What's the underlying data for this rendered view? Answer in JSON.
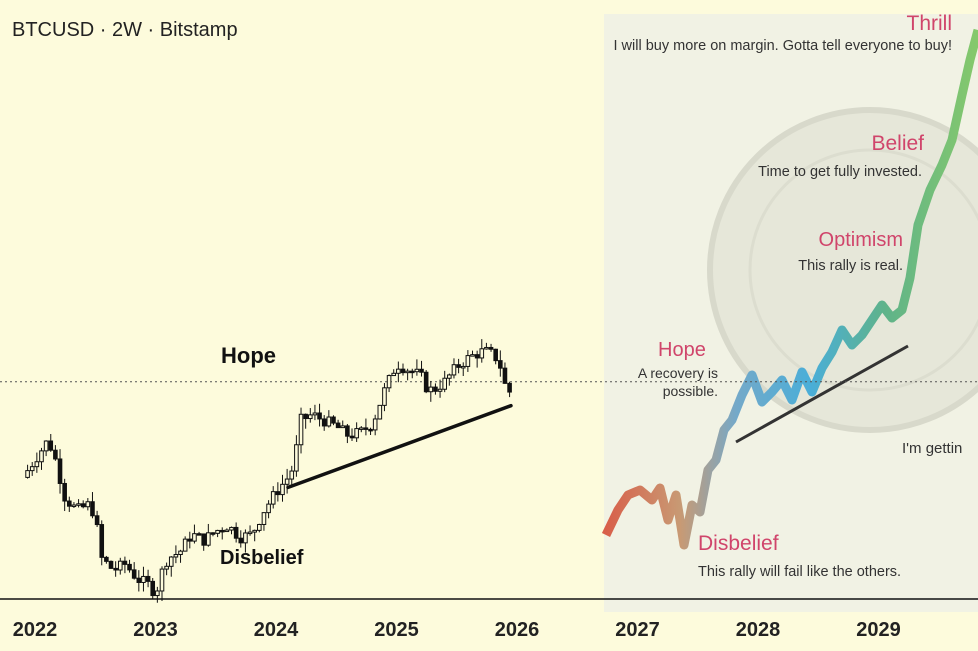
{
  "header": {
    "title": "BTCUSD · 2W · Bitstamp"
  },
  "chart_data": {
    "type": "candlestick",
    "title": "BTCUSD · 2W · Bitstamp",
    "symbol": "BTCUSD",
    "interval": "2W",
    "exchange": "Bitstamp",
    "x_ticks": [
      "2022",
      "2023",
      "2024",
      "2025",
      "2026",
      "2027",
      "2028",
      "2029"
    ],
    "annotations": [
      {
        "label": "Hope",
        "phase": "hope"
      },
      {
        "label": "Disbelief",
        "phase": "disbelief"
      }
    ],
    "trendline": {
      "from_year": 2024.1,
      "to_year": 2025.95
    },
    "price_path": [
      [
        2021.9,
        0.4
      ],
      [
        2022.0,
        0.46
      ],
      [
        2022.1,
        0.52
      ],
      [
        2022.15,
        0.49
      ],
      [
        2022.25,
        0.33
      ],
      [
        2022.35,
        0.29
      ],
      [
        2022.45,
        0.31
      ],
      [
        2022.5,
        0.27
      ],
      [
        2022.55,
        0.13
      ],
      [
        2022.65,
        0.09
      ],
      [
        2022.75,
        0.11
      ],
      [
        2022.85,
        0.06
      ],
      [
        2022.95,
        0.04
      ],
      [
        2023.0,
        0.01
      ],
      [
        2023.05,
        0.08
      ],
      [
        2023.1,
        0.13
      ],
      [
        2023.2,
        0.15
      ],
      [
        2023.3,
        0.21
      ],
      [
        2023.4,
        0.19
      ],
      [
        2023.5,
        0.22
      ],
      [
        2023.6,
        0.24
      ],
      [
        2023.7,
        0.2
      ],
      [
        2023.8,
        0.21
      ],
      [
        2023.9,
        0.29
      ],
      [
        2024.0,
        0.35
      ],
      [
        2024.1,
        0.4
      ],
      [
        2024.15,
        0.44
      ],
      [
        2024.2,
        0.59
      ],
      [
        2024.3,
        0.61
      ],
      [
        2024.4,
        0.59
      ],
      [
        2024.5,
        0.57
      ],
      [
        2024.6,
        0.54
      ],
      [
        2024.7,
        0.55
      ],
      [
        2024.8,
        0.58
      ],
      [
        2024.9,
        0.69
      ],
      [
        2025.0,
        0.78
      ],
      [
        2025.1,
        0.76
      ],
      [
        2025.2,
        0.74
      ],
      [
        2025.25,
        0.7
      ],
      [
        2025.3,
        0.69
      ],
      [
        2025.4,
        0.72
      ],
      [
        2025.5,
        0.77
      ],
      [
        2025.6,
        0.8
      ],
      [
        2025.7,
        0.82
      ],
      [
        2025.75,
        0.82
      ],
      [
        2025.8,
        0.81
      ],
      [
        2025.85,
        0.79
      ],
      [
        2025.9,
        0.71
      ],
      [
        2025.95,
        0.68
      ]
    ],
    "dotted_level_pct": 0.72,
    "inset": {
      "description": "Market cycle psychology chart",
      "phases": [
        {
          "label": "Disbelief",
          "text": "This rally will fail like the others."
        },
        {
          "label": "Hope",
          "text": "A recovery is possible."
        },
        {
          "label": "Optimism",
          "text": "This rally is real."
        },
        {
          "label": "Belief",
          "text": "Time to get fully invested."
        },
        {
          "label": "Thrill",
          "text": "I will buy more on margin. Gotta tell everyone to buy!"
        }
      ],
      "extra_text": "I'm gettin"
    }
  },
  "colors": {
    "background": "#fdfbdc",
    "inset_background": "#f1f2e4",
    "candle": "#111111",
    "phase_label": "#d0456b",
    "text": "#222222"
  }
}
